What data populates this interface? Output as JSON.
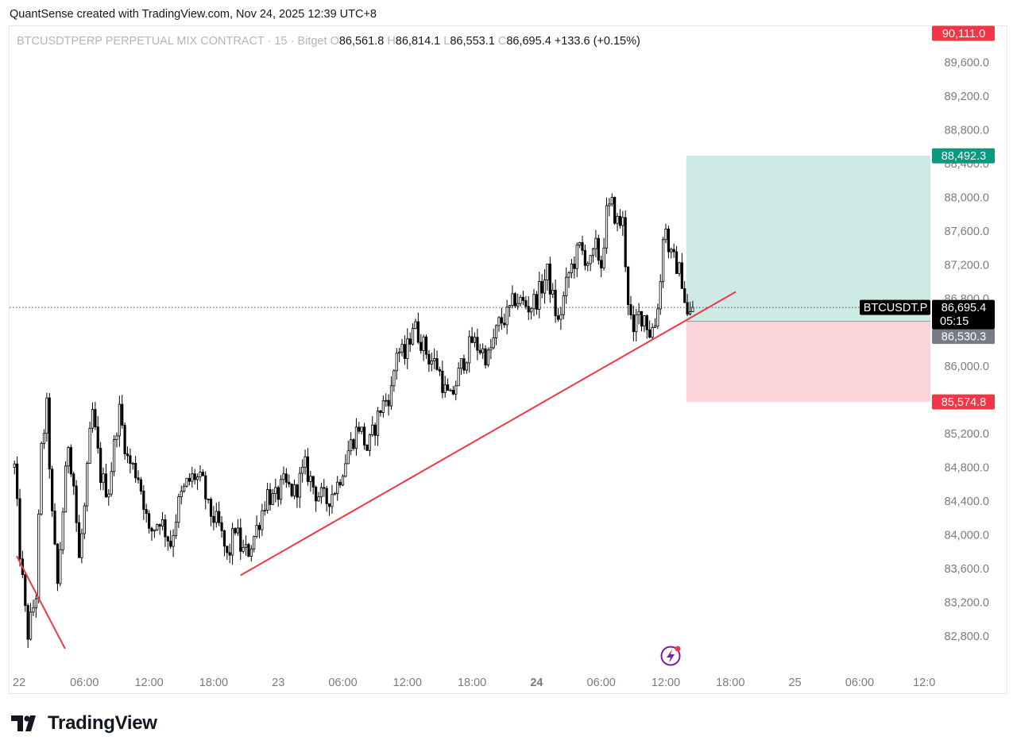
{
  "header": {
    "text": "QuantSense created with TradingView.com, Nov 24, 2025 12:39 UTC+8"
  },
  "footer": {
    "brand": "TradingView"
  },
  "colors": {
    "up_label": "#089981",
    "down_label": "#f23645",
    "price_label": "#000000",
    "entry_label": "#787b86",
    "trendline": "#f23645",
    "profit_zone": "#cdebe4",
    "loss_zone": "#fad4d8",
    "candle": "#000000"
  },
  "chart_data": {
    "type": "candlestick",
    "symbol": "BTCUSDTPERP PERPETUAL MIX CONTRACT",
    "interval": "15",
    "exchange": "Bitget",
    "legend": {
      "open_key": "O",
      "open": "86,561.8",
      "high_key": "H",
      "high": "86,814.1",
      "low_key": "L",
      "low": "86,553.1",
      "close_key": "C",
      "close": "86,695.4",
      "change": "+133.6 (+0.15%)"
    },
    "y_axis": {
      "ticks": [
        "89,600.0",
        "89,200.0",
        "88,800.0",
        "88,400.0",
        "88,000.0",
        "87,600.0",
        "87,200.0",
        "86,800.0",
        "86,000.0",
        "85,200.0",
        "84,800.0",
        "84,400.0",
        "84,000.0",
        "83,600.0",
        "83,200.0",
        "82,800.0"
      ],
      "tick_values": [
        89600,
        89200,
        88800,
        88400,
        88000,
        87600,
        87200,
        86800,
        86000,
        85200,
        84800,
        84400,
        84000,
        83600,
        83200,
        82800
      ],
      "range": [
        82400,
        90200
      ]
    },
    "x_axis": {
      "ticks": [
        {
          "label": "22",
          "hours": 0,
          "bold": false
        },
        {
          "label": "06:00",
          "hours": 6,
          "bold": false
        },
        {
          "label": "12:00",
          "hours": 12,
          "bold": false
        },
        {
          "label": "18:00",
          "hours": 18,
          "bold": false
        },
        {
          "label": "23",
          "hours": 24,
          "bold": false
        },
        {
          "label": "06:00",
          "hours": 30,
          "bold": false
        },
        {
          "label": "12:00",
          "hours": 36,
          "bold": false
        },
        {
          "label": "18:00",
          "hours": 42,
          "bold": false
        },
        {
          "label": "24",
          "hours": 48,
          "bold": true
        },
        {
          "label": "06:00",
          "hours": 54,
          "bold": false
        },
        {
          "label": "12:00",
          "hours": 60,
          "bold": false
        },
        {
          "label": "18:00",
          "hours": 66,
          "bold": false
        },
        {
          "label": "25",
          "hours": 72,
          "bold": false
        },
        {
          "label": "06:00",
          "hours": 78,
          "bold": false
        },
        {
          "label": "12:0",
          "hours": 84,
          "bold": false
        }
      ]
    },
    "price_path": [
      [
        -0.5,
        84800
      ],
      [
        0,
        83800
      ],
      [
        0.7,
        82800
      ],
      [
        1.5,
        83300
      ],
      [
        2,
        85000
      ],
      [
        2.5,
        85500
      ],
      [
        3,
        84200
      ],
      [
        3.5,
        83400
      ],
      [
        4,
        84300
      ],
      [
        4.5,
        85100
      ],
      [
        5,
        84600
      ],
      [
        5.5,
        83700
      ],
      [
        6,
        84300
      ],
      [
        6.7,
        85500
      ],
      [
        7.5,
        84700
      ],
      [
        8.2,
        84500
      ],
      [
        8.7,
        85000
      ],
      [
        9.2,
        85500
      ],
      [
        10,
        84900
      ],
      [
        11,
        84700
      ],
      [
        11.5,
        84400
      ],
      [
        12,
        84000
      ],
      [
        13,
        84200
      ],
      [
        14,
        83900
      ],
      [
        14.8,
        84400
      ],
      [
        15.5,
        84600
      ],
      [
        16.2,
        84700
      ],
      [
        17,
        84600
      ],
      [
        17.5,
        84300
      ],
      [
        18.5,
        84100
      ],
      [
        19.3,
        83700
      ],
      [
        20,
        84100
      ],
      [
        20.6,
        83800
      ],
      [
        21.2,
        83800
      ],
      [
        21.8,
        84000
      ],
      [
        22.3,
        84200
      ],
      [
        23,
        84500
      ],
      [
        23.6,
        84400
      ],
      [
        24.5,
        84600
      ],
      [
        25.5,
        84500
      ],
      [
        26.5,
        84800
      ],
      [
        27.5,
        84500
      ],
      [
        28.5,
        84400
      ],
      [
        29.5,
        84600
      ],
      [
        30.5,
        85000
      ],
      [
        31.5,
        85300
      ],
      [
        32.3,
        85000
      ],
      [
        33.5,
        85500
      ],
      [
        34.5,
        85700
      ],
      [
        35,
        86200
      ],
      [
        35.8,
        86100
      ],
      [
        36.5,
        86500
      ],
      [
        37.3,
        86300
      ],
      [
        38,
        86100
      ],
      [
        38.8,
        86000
      ],
      [
        39.5,
        85700
      ],
      [
        40,
        85600
      ],
      [
        41,
        86000
      ],
      [
        42,
        86300
      ],
      [
        42.8,
        86200
      ],
      [
        43.5,
        86100
      ],
      [
        44.5,
        86500
      ],
      [
        45.3,
        86600
      ],
      [
        46,
        86800
      ],
      [
        47.3,
        86700
      ],
      [
        48,
        86800
      ],
      [
        49,
        87100
      ],
      [
        50,
        86500
      ],
      [
        51,
        87100
      ],
      [
        52,
        87400
      ],
      [
        53,
        87200
      ],
      [
        53.5,
        87400
      ],
      [
        54,
        87200
      ],
      [
        54.5,
        87800
      ],
      [
        55,
        87900
      ],
      [
        55.5,
        87700
      ],
      [
        56,
        87700
      ],
      [
        56.5,
        86800
      ],
      [
        57,
        86300
      ],
      [
        57.3,
        86600
      ],
      [
        58,
        86600
      ],
      [
        58.5,
        86400
      ],
      [
        59,
        86500
      ],
      [
        59.5,
        87000
      ],
      [
        59.8,
        87700
      ],
      [
        60,
        87600
      ],
      [
        60.4,
        87300
      ],
      [
        61,
        87200
      ],
      [
        61.6,
        87000
      ],
      [
        61.9,
        86600
      ],
      [
        62.2,
        86580
      ],
      [
        62.6,
        86700
      ]
    ],
    "levels": {
      "top_label": "90,111.0",
      "top_value": 90111.0,
      "take_profit": "88,492.3",
      "take_profit_value": 88492.3,
      "current_price": "86,695.4",
      "current_value": 86695.4,
      "current_symbol": "BTCUSDT.P",
      "countdown": "05:15",
      "entry": "86,530.3",
      "entry_value": 86530.3,
      "stop_loss": "85,574.8",
      "stop_loss_value": 85574.8
    },
    "position_box": {
      "start_hours": 61.9,
      "end_hours": 86.0
    },
    "trendlines": [
      {
        "from": [
          -0.3,
          83750
        ],
        "to": [
          4.2,
          82650
        ]
      },
      {
        "from": [
          20.5,
          83520
        ],
        "to": [
          66.5,
          86880
        ]
      }
    ]
  }
}
